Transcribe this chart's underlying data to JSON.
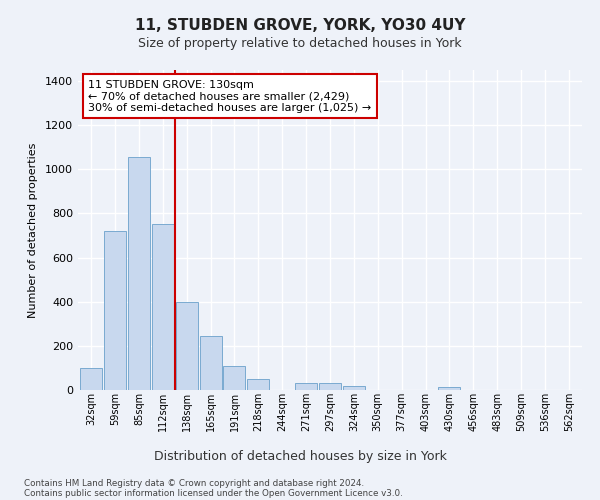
{
  "title": "11, STUBDEN GROVE, YORK, YO30 4UY",
  "subtitle": "Size of property relative to detached houses in York",
  "xlabel": "Distribution of detached houses by size in York",
  "ylabel": "Number of detached properties",
  "bar_color": "#c8d8ee",
  "bar_edge_color": "#7aaad0",
  "annotation_line1": "11 STUBDEN GROVE: 130sqm",
  "annotation_line2": "← 70% of detached houses are smaller (2,429)",
  "annotation_line3": "30% of semi-detached houses are larger (1,025) →",
  "footnote1": "Contains HM Land Registry data © Crown copyright and database right 2024.",
  "footnote2": "Contains public sector information licensed under the Open Government Licence v3.0.",
  "categories": [
    "32sqm",
    "59sqm",
    "85sqm",
    "112sqm",
    "138sqm",
    "165sqm",
    "191sqm",
    "218sqm",
    "244sqm",
    "271sqm",
    "297sqm",
    "324sqm",
    "350sqm",
    "377sqm",
    "403sqm",
    "430sqm",
    "456sqm",
    "483sqm",
    "509sqm",
    "536sqm",
    "562sqm"
  ],
  "values": [
    100,
    720,
    1055,
    750,
    400,
    245,
    110,
    50,
    0,
    30,
    30,
    20,
    0,
    0,
    0,
    15,
    0,
    0,
    0,
    0,
    0
  ],
  "ylim": [
    0,
    1450
  ],
  "yticks": [
    0,
    200,
    400,
    600,
    800,
    1000,
    1200,
    1400
  ],
  "background_color": "#eef2f9",
  "grid_color": "#ffffff",
  "annotation_box_color": "#ffffff",
  "annotation_box_edge": "#cc0000",
  "vline_color": "#cc0000",
  "vline_x_index": 4
}
